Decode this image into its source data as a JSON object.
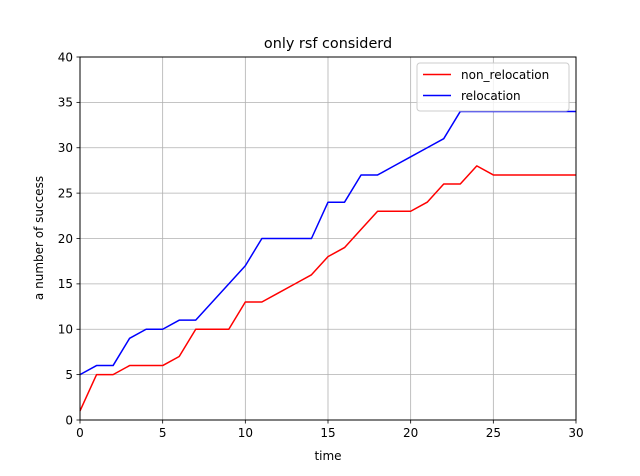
{
  "chart_data": {
    "type": "line",
    "title": "only rsf considerd",
    "xlabel": "time",
    "ylabel": "a number of success",
    "xlim": [
      0,
      30
    ],
    "ylim": [
      0,
      40
    ],
    "x_ticks": [
      0,
      5,
      10,
      15,
      20,
      25,
      30
    ],
    "y_ticks": [
      0,
      5,
      10,
      15,
      20,
      25,
      30,
      35,
      40
    ],
    "grid": true,
    "legend_position": "top-right",
    "x": [
      0,
      1,
      2,
      3,
      4,
      5,
      6,
      7,
      8,
      9,
      10,
      11,
      12,
      13,
      14,
      15,
      16,
      17,
      18,
      19,
      20,
      21,
      22,
      23,
      24,
      25,
      26,
      27,
      28,
      29,
      30
    ],
    "series": [
      {
        "name": "non_relocation",
        "color": "#ff0000",
        "values": [
          1,
          5,
          5,
          6,
          6,
          6,
          7,
          10,
          10,
          10,
          13,
          13,
          14,
          15,
          16,
          18,
          19,
          21,
          23,
          23,
          23,
          24,
          26,
          26,
          28,
          27,
          27,
          27,
          27,
          27,
          27
        ]
      },
      {
        "name": "relocation",
        "color": "#0000ff",
        "values": [
          5,
          6,
          6,
          9,
          10,
          10,
          11,
          11,
          13,
          15,
          17,
          20,
          20,
          20,
          20,
          24,
          24,
          27,
          27,
          28,
          29,
          30,
          31,
          34,
          34,
          34,
          34,
          34,
          34,
          34,
          34
        ]
      }
    ]
  }
}
